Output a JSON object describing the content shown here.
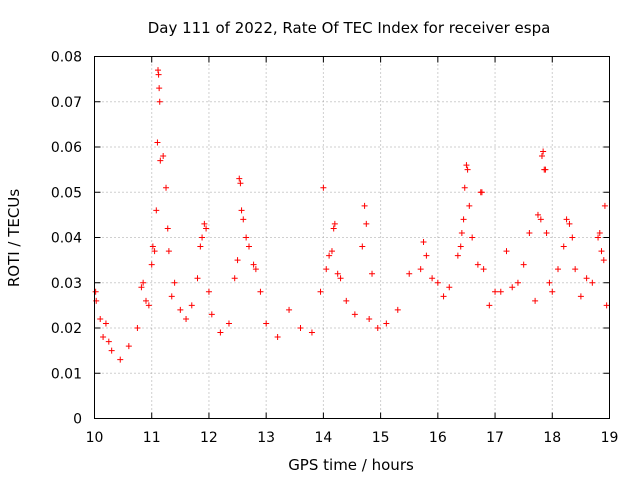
{
  "chart_data": {
    "type": "scatter",
    "title": "Day 111 of 2022, Rate Of TEC Index for receiver espa",
    "xlabel": "GPS time / hours",
    "ylabel": "ROTI / TECUs",
    "xlim": [
      10,
      19
    ],
    "ylim": [
      0,
      0.08
    ],
    "grid": true,
    "marker": "plus",
    "color": "#ff0000",
    "xticks": [
      10,
      11,
      12,
      13,
      14,
      15,
      16,
      17,
      18,
      19
    ],
    "xtick_labels": [
      "10",
      "11",
      "12",
      "13",
      "14",
      "15",
      "16",
      "17",
      "18",
      "19"
    ],
    "yticks": [
      0,
      0.01,
      0.02,
      0.03,
      0.04,
      0.05,
      0.06,
      0.07,
      0.08
    ],
    "ytick_labels": [
      "0",
      "0.01",
      "0.02",
      "0.03",
      "0.04",
      "0.05",
      "0.06",
      "0.07",
      "0.08"
    ],
    "series": [
      {
        "name": "espa ROTI",
        "points": [
          [
            10.02,
            0.028
          ],
          [
            10.03,
            0.026
          ],
          [
            10.1,
            0.022
          ],
          [
            10.15,
            0.018
          ],
          [
            10.2,
            0.021
          ],
          [
            10.25,
            0.017
          ],
          [
            10.3,
            0.015
          ],
          [
            10.45,
            0.013
          ],
          [
            10.6,
            0.016
          ],
          [
            10.75,
            0.02
          ],
          [
            10.82,
            0.029
          ],
          [
            10.85,
            0.03
          ],
          [
            10.9,
            0.026
          ],
          [
            10.95,
            0.025
          ],
          [
            11.0,
            0.034
          ],
          [
            11.02,
            0.038
          ],
          [
            11.05,
            0.037
          ],
          [
            11.08,
            0.046
          ],
          [
            11.1,
            0.061
          ],
          [
            11.11,
            0.077
          ],
          [
            11.12,
            0.076
          ],
          [
            11.13,
            0.073
          ],
          [
            11.14,
            0.07
          ],
          [
            11.15,
            0.057
          ],
          [
            11.2,
            0.058
          ],
          [
            11.25,
            0.051
          ],
          [
            11.28,
            0.042
          ],
          [
            11.3,
            0.037
          ],
          [
            11.35,
            0.027
          ],
          [
            11.4,
            0.03
          ],
          [
            11.5,
            0.024
          ],
          [
            11.6,
            0.022
          ],
          [
            11.7,
            0.025
          ],
          [
            11.8,
            0.031
          ],
          [
            11.85,
            0.038
          ],
          [
            11.88,
            0.04
          ],
          [
            11.92,
            0.043
          ],
          [
            11.95,
            0.042
          ],
          [
            12.0,
            0.028
          ],
          [
            12.05,
            0.023
          ],
          [
            12.2,
            0.019
          ],
          [
            12.35,
            0.021
          ],
          [
            12.45,
            0.031
          ],
          [
            12.5,
            0.035
          ],
          [
            12.53,
            0.053
          ],
          [
            12.55,
            0.052
          ],
          [
            12.57,
            0.046
          ],
          [
            12.6,
            0.044
          ],
          [
            12.65,
            0.04
          ],
          [
            12.7,
            0.038
          ],
          [
            12.78,
            0.034
          ],
          [
            12.82,
            0.033
          ],
          [
            12.9,
            0.028
          ],
          [
            13.0,
            0.021
          ],
          [
            13.2,
            0.018
          ],
          [
            13.4,
            0.024
          ],
          [
            13.6,
            0.02
          ],
          [
            13.8,
            0.019
          ],
          [
            13.95,
            0.028
          ],
          [
            14.0,
            0.051
          ],
          [
            14.05,
            0.033
          ],
          [
            14.1,
            0.036
          ],
          [
            14.15,
            0.037
          ],
          [
            14.18,
            0.042
          ],
          [
            14.2,
            0.043
          ],
          [
            14.25,
            0.032
          ],
          [
            14.3,
            0.031
          ],
          [
            14.4,
            0.026
          ],
          [
            14.55,
            0.023
          ],
          [
            14.68,
            0.038
          ],
          [
            14.72,
            0.047
          ],
          [
            14.75,
            0.043
          ],
          [
            14.8,
            0.022
          ],
          [
            14.85,
            0.032
          ],
          [
            14.95,
            0.02
          ],
          [
            15.1,
            0.021
          ],
          [
            15.3,
            0.024
          ],
          [
            15.5,
            0.032
          ],
          [
            15.7,
            0.033
          ],
          [
            15.75,
            0.039
          ],
          [
            15.8,
            0.036
          ],
          [
            15.9,
            0.031
          ],
          [
            16.0,
            0.03
          ],
          [
            16.1,
            0.027
          ],
          [
            16.2,
            0.029
          ],
          [
            16.35,
            0.036
          ],
          [
            16.4,
            0.038
          ],
          [
            16.42,
            0.041
          ],
          [
            16.45,
            0.044
          ],
          [
            16.47,
            0.051
          ],
          [
            16.5,
            0.056
          ],
          [
            16.52,
            0.055
          ],
          [
            16.55,
            0.047
          ],
          [
            16.6,
            0.04
          ],
          [
            16.7,
            0.034
          ],
          [
            16.75,
            0.05
          ],
          [
            16.77,
            0.05
          ],
          [
            16.8,
            0.033
          ],
          [
            16.9,
            0.025
          ],
          [
            17.0,
            0.028
          ],
          [
            17.1,
            0.028
          ],
          [
            17.2,
            0.037
          ],
          [
            17.3,
            0.029
          ],
          [
            17.4,
            0.03
          ],
          [
            17.5,
            0.034
          ],
          [
            17.6,
            0.041
          ],
          [
            17.7,
            0.026
          ],
          [
            17.75,
            0.045
          ],
          [
            17.8,
            0.044
          ],
          [
            17.82,
            0.058
          ],
          [
            17.84,
            0.059
          ],
          [
            17.86,
            0.055
          ],
          [
            17.88,
            0.055
          ],
          [
            17.9,
            0.041
          ],
          [
            17.95,
            0.03
          ],
          [
            18.0,
            0.028
          ],
          [
            18.1,
            0.033
          ],
          [
            18.2,
            0.038
          ],
          [
            18.25,
            0.044
          ],
          [
            18.3,
            0.043
          ],
          [
            18.35,
            0.04
          ],
          [
            18.4,
            0.033
          ],
          [
            18.5,
            0.027
          ],
          [
            18.6,
            0.031
          ],
          [
            18.7,
            0.03
          ],
          [
            18.8,
            0.04
          ],
          [
            18.83,
            0.041
          ],
          [
            18.86,
            0.037
          ],
          [
            18.9,
            0.035
          ],
          [
            18.92,
            0.047
          ],
          [
            18.95,
            0.025
          ]
        ]
      }
    ]
  }
}
